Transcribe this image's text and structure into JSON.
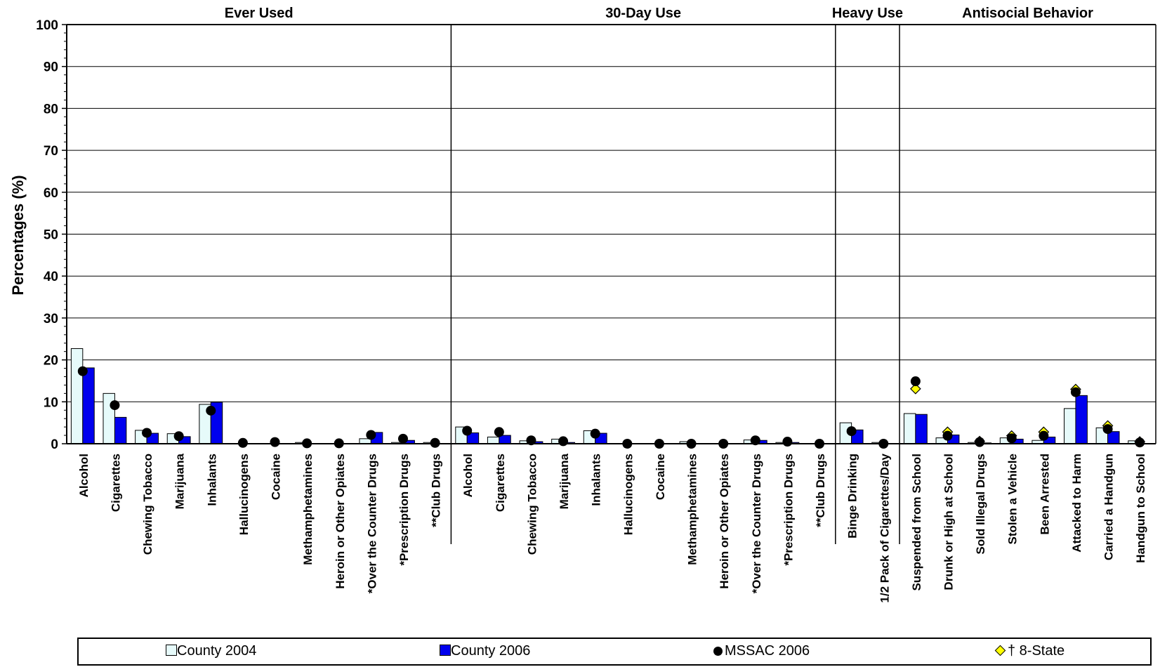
{
  "chart_data": {
    "type": "bar",
    "ylabel": "Percentages (%)",
    "ylim": [
      0,
      100
    ],
    "yticks": [
      0,
      10,
      20,
      30,
      40,
      50,
      60,
      70,
      80,
      90,
      100
    ],
    "grid": true,
    "legend_position": "bottom",
    "groups": [
      {
        "label": "Ever Used",
        "count": 12
      },
      {
        "label": "30-Day Use",
        "count": 12
      },
      {
        "label": "Heavy Use",
        "count": 2
      },
      {
        "label": "Antisocial Behavior",
        "count": 8
      }
    ],
    "categories": [
      "Alcohol",
      "Cigarettes",
      "Chewing Tobacco",
      "Marijuana",
      "Inhalants",
      "Hallucinogens",
      "Cocaine",
      "Methamphetamines",
      "Heroin or Other Opiates",
      "*Over the Counter Drugs",
      "*Prescription Drugs",
      "**Club Drugs",
      "Alcohol",
      "Cigarettes",
      "Chewing Tobacco",
      "Marijuana",
      "Inhalants",
      "Hallucinogens",
      "Cocaine",
      "Methamphetamines",
      "Heroin or Other Opiates",
      "*Over the Counter Drugs",
      "*Prescription Drugs",
      "**Club Drugs",
      "Binge Drinking",
      "1/2 Pack of Cigarettes/Day",
      "Suspended from School",
      "Drunk or High at School",
      "Sold Illegal Drugs",
      "Stolen a Vehicle",
      "Been Arrested",
      "Attacked to Harm",
      "Carried a Handgun",
      "Handgun to School"
    ],
    "series": [
      {
        "name": "County 2004",
        "type": "bar",
        "color": "#e6fafa",
        "values": [
          22.7,
          12.0,
          3.2,
          2.4,
          9.4,
          0.0,
          0.0,
          0.3,
          0.0,
          1.2,
          0.3,
          0.3,
          4.0,
          1.6,
          0.7,
          1.1,
          3.1,
          0.0,
          0.0,
          0.5,
          0.0,
          0.9,
          0.3,
          0.0,
          5.0,
          0.3,
          7.2,
          1.4,
          0.3,
          1.4,
          0.8,
          8.4,
          3.8,
          0.7
        ]
      },
      {
        "name": "County 2006",
        "type": "bar",
        "color": "#0000ee",
        "values": [
          18.1,
          6.3,
          2.5,
          1.7,
          9.9,
          0.0,
          0.0,
          0.0,
          0.0,
          2.7,
          0.8,
          0.0,
          2.6,
          2.0,
          0.5,
          0.3,
          2.5,
          0.0,
          0.0,
          0.0,
          0.0,
          0.8,
          0.3,
          0.0,
          3.3,
          0.0,
          7.0,
          2.1,
          0.2,
          1.1,
          1.6,
          11.5,
          2.9,
          0.0
        ]
      },
      {
        "name": "MSSAC 2006",
        "type": "marker",
        "color": "#000000",
        "values": [
          17.3,
          9.2,
          2.6,
          1.8,
          7.9,
          0.2,
          0.4,
          0.1,
          0.1,
          2.1,
          1.2,
          0.2,
          3.1,
          2.8,
          0.8,
          0.6,
          2.4,
          0.0,
          0.0,
          0.0,
          0.0,
          0.8,
          0.5,
          0.0,
          3.0,
          0.0,
          14.9,
          1.9,
          0.4,
          1.3,
          1.9,
          12.3,
          3.5,
          0.3
        ]
      },
      {
        "name": "† 8-State",
        "type": "marker",
        "color": "#ffff00",
        "values": [
          null,
          null,
          null,
          null,
          null,
          null,
          null,
          null,
          null,
          null,
          null,
          null,
          null,
          null,
          null,
          null,
          null,
          null,
          null,
          null,
          null,
          null,
          null,
          null,
          null,
          null,
          13.1,
          2.8,
          0.6,
          1.9,
          2.8,
          13.0,
          4.3,
          0.5
        ]
      }
    ]
  }
}
